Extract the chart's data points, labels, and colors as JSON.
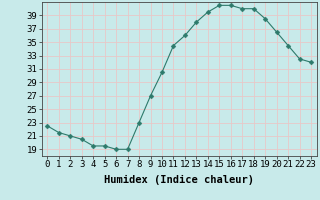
{
  "x": [
    0,
    1,
    2,
    3,
    4,
    5,
    6,
    7,
    8,
    9,
    10,
    11,
    12,
    13,
    14,
    15,
    16,
    17,
    18,
    19,
    20,
    21,
    22,
    23
  ],
  "y": [
    22.5,
    21.5,
    21.0,
    20.5,
    19.5,
    19.5,
    19.0,
    19.0,
    23.0,
    27.0,
    30.5,
    34.5,
    36.0,
    38.0,
    39.5,
    40.5,
    40.5,
    40.0,
    40.0,
    38.5,
    36.5,
    34.5,
    32.5,
    32.0
  ],
  "line_color": "#2d7a6b",
  "marker": "D",
  "marker_size": 2.5,
  "bg_color": "#c8eaea",
  "grid_color": "#e8c8c8",
  "xlabel": "Humidex (Indice chaleur)",
  "ylim": [
    18,
    41
  ],
  "yticks": [
    19,
    21,
    23,
    25,
    27,
    29,
    31,
    33,
    35,
    37,
    39
  ],
  "xlim": [
    -0.5,
    23.5
  ],
  "xticks": [
    0,
    1,
    2,
    3,
    4,
    5,
    6,
    7,
    8,
    9,
    10,
    11,
    12,
    13,
    14,
    15,
    16,
    17,
    18,
    19,
    20,
    21,
    22,
    23
  ],
  "xlabel_fontsize": 7.5,
  "tick_fontsize": 6.5
}
